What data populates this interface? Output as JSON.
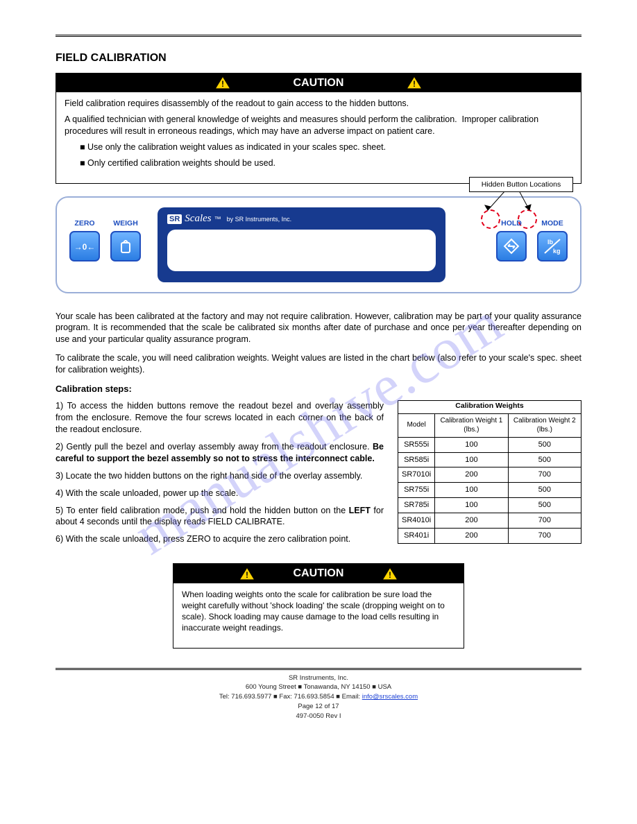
{
  "page": {
    "section_title": "FIELD CALIBRATION"
  },
  "caution1": {
    "heading": "CAUTION",
    "body1": "Field calibration requires disassembly of the readout to gain access to the hidden buttons.",
    "body2_prefix": "A qualified technician with general knowledge of weights and measures should perform the calibration.  Improper calibration procedures will result in erroneous readings, which may have an adverse impact on patient care.",
    "ul1": "Use only the calibration weight values as indicated in your scales spec. sheet.",
    "ul2": "Only certified calibration weights should be used."
  },
  "hidden_label": "Hidden Button Locations",
  "panel": {
    "zero": "ZERO",
    "weigh": "WEIGH",
    "hold": "HOLD",
    "mode": "MODE",
    "brand_sr": "SR",
    "brand_scales": "Scales",
    "tm": "™",
    "byline": "by SR Instruments, Inc."
  },
  "body": {
    "p1": "Your scale has been calibrated at the factory and may not require calibration.  However, calibration may be part of your quality assurance program.  It is recommended that the scale be calibrated six months after date of purchase and once per year thereafter depending on use and your particular quality assurance program.",
    "p2": "To calibrate the scale, you will need calibration weights.  Weight values are listed in the chart below (also refer to your scale's spec. sheet for calibration weights).",
    "subhead": "Calibration steps:",
    "s1": "1)   To access the hidden buttons remove the readout bezel and overlay assembly from the enclosure.  Remove the four screws located in each corner on the back of the readout enclosure.",
    "s2a": "2)   Gently pull the bezel and overlay assembly away from the readout enclosure.",
    "s2b_bold": "Be careful to support the bezel assembly so not to stress the interconnect cable.",
    "s3": "3)   Locate the two hidden buttons on the right hand side of the overlay assembly.",
    "s4": "4)   With the scale unloaded, power up the scale.",
    "s5a": "5)   To enter field calibration mode, push and hold the hidden button on the ",
    "s5b_bold": "LEFT",
    "s5c": " for about 4 seconds until the display reads FIELD CALIBRATE.",
    "s6": "6)   With the scale unloaded, press ZERO to acquire the zero calibration point."
  },
  "table": {
    "caption": "Calibration Weights",
    "h1": "Model",
    "h2": "Calibration Weight 1 (lbs.)",
    "h3": "Calibration Weight 2 (lbs.)",
    "rows": [
      [
        "SR555i",
        "100",
        "500"
      ],
      [
        "SR585i",
        "100",
        "500"
      ],
      [
        "SR7010i",
        "200",
        "700"
      ],
      [
        "SR755i",
        "100",
        "500"
      ],
      [
        "SR785i",
        "100",
        "500"
      ],
      [
        "SR4010i",
        "200",
        "700"
      ],
      [
        "SR401i",
        "200",
        "700"
      ]
    ]
  },
  "caution2": {
    "heading": "CAUTION",
    "body": "When loading weights onto the scale for calibration be sure load the weight carefully without 'shock loading' the scale (dropping weight on to scale).  Shock loading may cause damage to the load cells resulting in inaccurate weight readings."
  },
  "footer": {
    "l1": "SR Instruments, Inc.",
    "l2": "600 Young Street  ■  Tonawanda, NY  14150  ■  USA",
    "l3a": "Tel: 716.693.5977  ■  Fax: 716.693.5854  ■  Email: ",
    "l3_link": "info@srscales.com",
    "l4": "Page 12 of 17",
    "l5": "497-0050 Rev I"
  },
  "watermark": "manualshive.com",
  "colors": {
    "accent_blue": "#1f4fbf",
    "bezel_blue": "#173a8f",
    "warn_yellow": "#ffd400",
    "red_dash": "#e2001a"
  }
}
